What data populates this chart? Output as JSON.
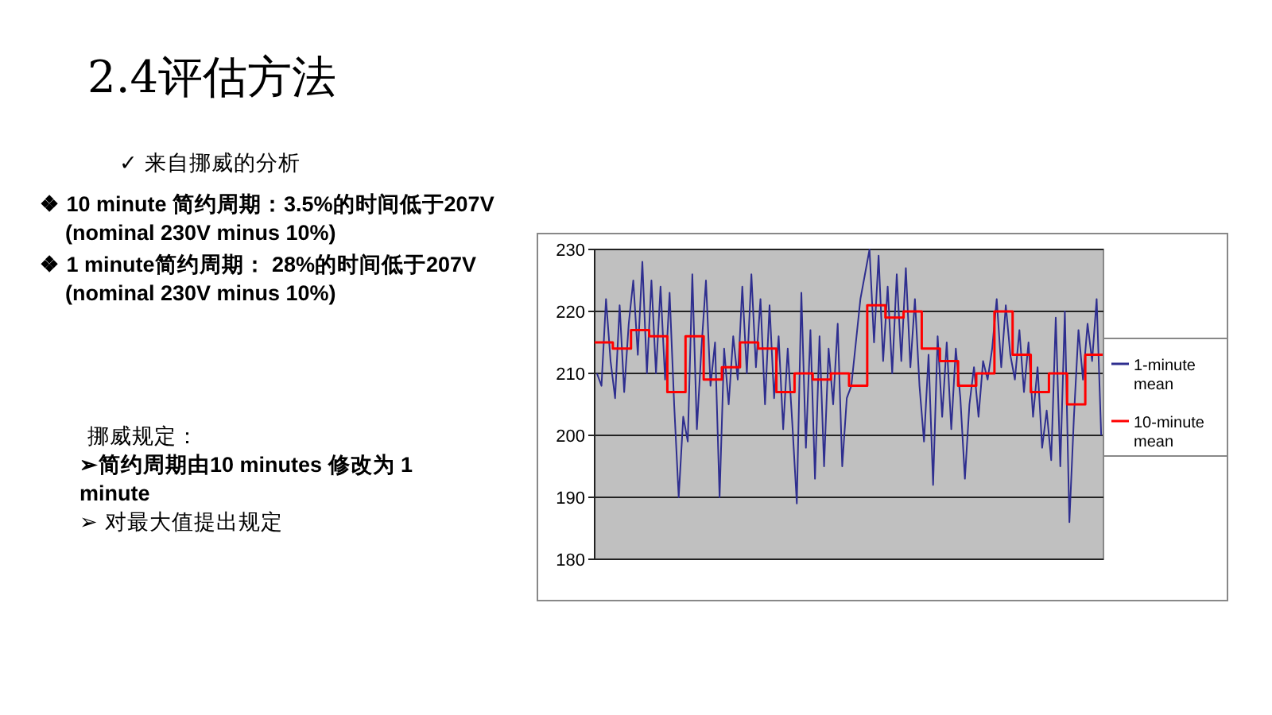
{
  "chart_data": {
    "type": "line",
    "title": "2.4评估方法",
    "annotations": [
      "✓ 来自挪威的分析",
      "❖ 10 minute 简约周期：3.5%的时间低于207V (nominal 230V minus 10%)",
      "❖ 1 minute简约周期： 28%的时间低于207V (nominal 230V minus 10%)",
      "挪威规定：",
      "➢简约周期由10 minutes 修改为 1 minute",
      "➢ 对最大值提出规定"
    ],
    "categories": [
      null,
      null,
      null,
      null,
      null,
      null,
      null,
      null,
      null,
      null,
      null,
      null,
      null,
      null,
      null,
      null,
      null,
      null,
      null,
      null,
      null,
      null,
      null,
      null,
      null,
      null,
      null,
      null,
      null,
      null,
      null,
      null,
      null,
      null,
      null,
      null,
      null,
      null,
      null,
      null,
      null,
      null,
      null,
      null,
      null,
      null,
      null,
      null,
      null,
      null,
      null,
      null,
      null,
      null,
      null,
      null,
      null,
      null,
      null,
      null,
      null,
      null,
      null,
      null,
      null,
      null,
      null,
      null,
      null,
      null,
      null,
      null,
      null,
      null,
      null,
      null,
      null,
      null,
      null,
      null,
      null,
      null,
      null,
      null,
      null,
      null,
      null,
      null,
      null,
      null,
      null,
      null,
      null,
      null,
      null,
      null,
      null,
      null,
      null,
      null,
      null,
      null,
      null,
      null,
      null,
      null,
      null,
      null,
      null,
      null,
      null,
      null
    ],
    "series": [
      {
        "name": "1-minute mean",
        "type": "line",
        "color": "#2e2e8f",
        "values": [
          210,
          208,
          222,
          212,
          206,
          221,
          207,
          218,
          225,
          213,
          228,
          210,
          225,
          210,
          224,
          209,
          223,
          205,
          190,
          203,
          199,
          226,
          201,
          214,
          225,
          208,
          215,
          190,
          214,
          205,
          216,
          209,
          224,
          210,
          226,
          211,
          222,
          205,
          221,
          206,
          216,
          201,
          214,
          202,
          189,
          223,
          198,
          217,
          193,
          216,
          195,
          214,
          205,
          218,
          195,
          206,
          208,
          215,
          222,
          226,
          230,
          215,
          229,
          212,
          224,
          210,
          226,
          212,
          227,
          211,
          222,
          208,
          199,
          213,
          192,
          216,
          203,
          215,
          201,
          214,
          206,
          193,
          205,
          211,
          203,
          212,
          209,
          214,
          222,
          211,
          221,
          213,
          209,
          217,
          207,
          215,
          203,
          211,
          198,
          204,
          196,
          219,
          195,
          220,
          186,
          203,
          217,
          209,
          218,
          212,
          222,
          200
        ]
      },
      {
        "name": "10-minute mean",
        "type": "step",
        "color": "#ff0000",
        "values": [
          215,
          215,
          215,
          215,
          214,
          214,
          214,
          214,
          217,
          217,
          217,
          217,
          216,
          216,
          216,
          216,
          207,
          207,
          207,
          207,
          216,
          216,
          216,
          216,
          209,
          209,
          209,
          209,
          211,
          211,
          211,
          211,
          215,
          215,
          215,
          215,
          214,
          214,
          214,
          214,
          207,
          207,
          207,
          207,
          210,
          210,
          210,
          210,
          209,
          209,
          209,
          209,
          210,
          210,
          210,
          210,
          208,
          208,
          208,
          208,
          221,
          221,
          221,
          221,
          219,
          219,
          219,
          219,
          220,
          220,
          220,
          220,
          214,
          214,
          214,
          214,
          212,
          212,
          212,
          212,
          208,
          208,
          208,
          208,
          210,
          210,
          210,
          210,
          220,
          220,
          220,
          220,
          213,
          213,
          213,
          213,
          207,
          207,
          207,
          207,
          210,
          210,
          210,
          210,
          205,
          205,
          205,
          205,
          213,
          213,
          213,
          213
        ]
      }
    ],
    "ylim": [
      180,
      230
    ],
    "yticks": [
      180,
      190,
      200,
      210,
      220,
      230
    ],
    "grid": "y",
    "legend": "right",
    "tick_labels": "y"
  }
}
